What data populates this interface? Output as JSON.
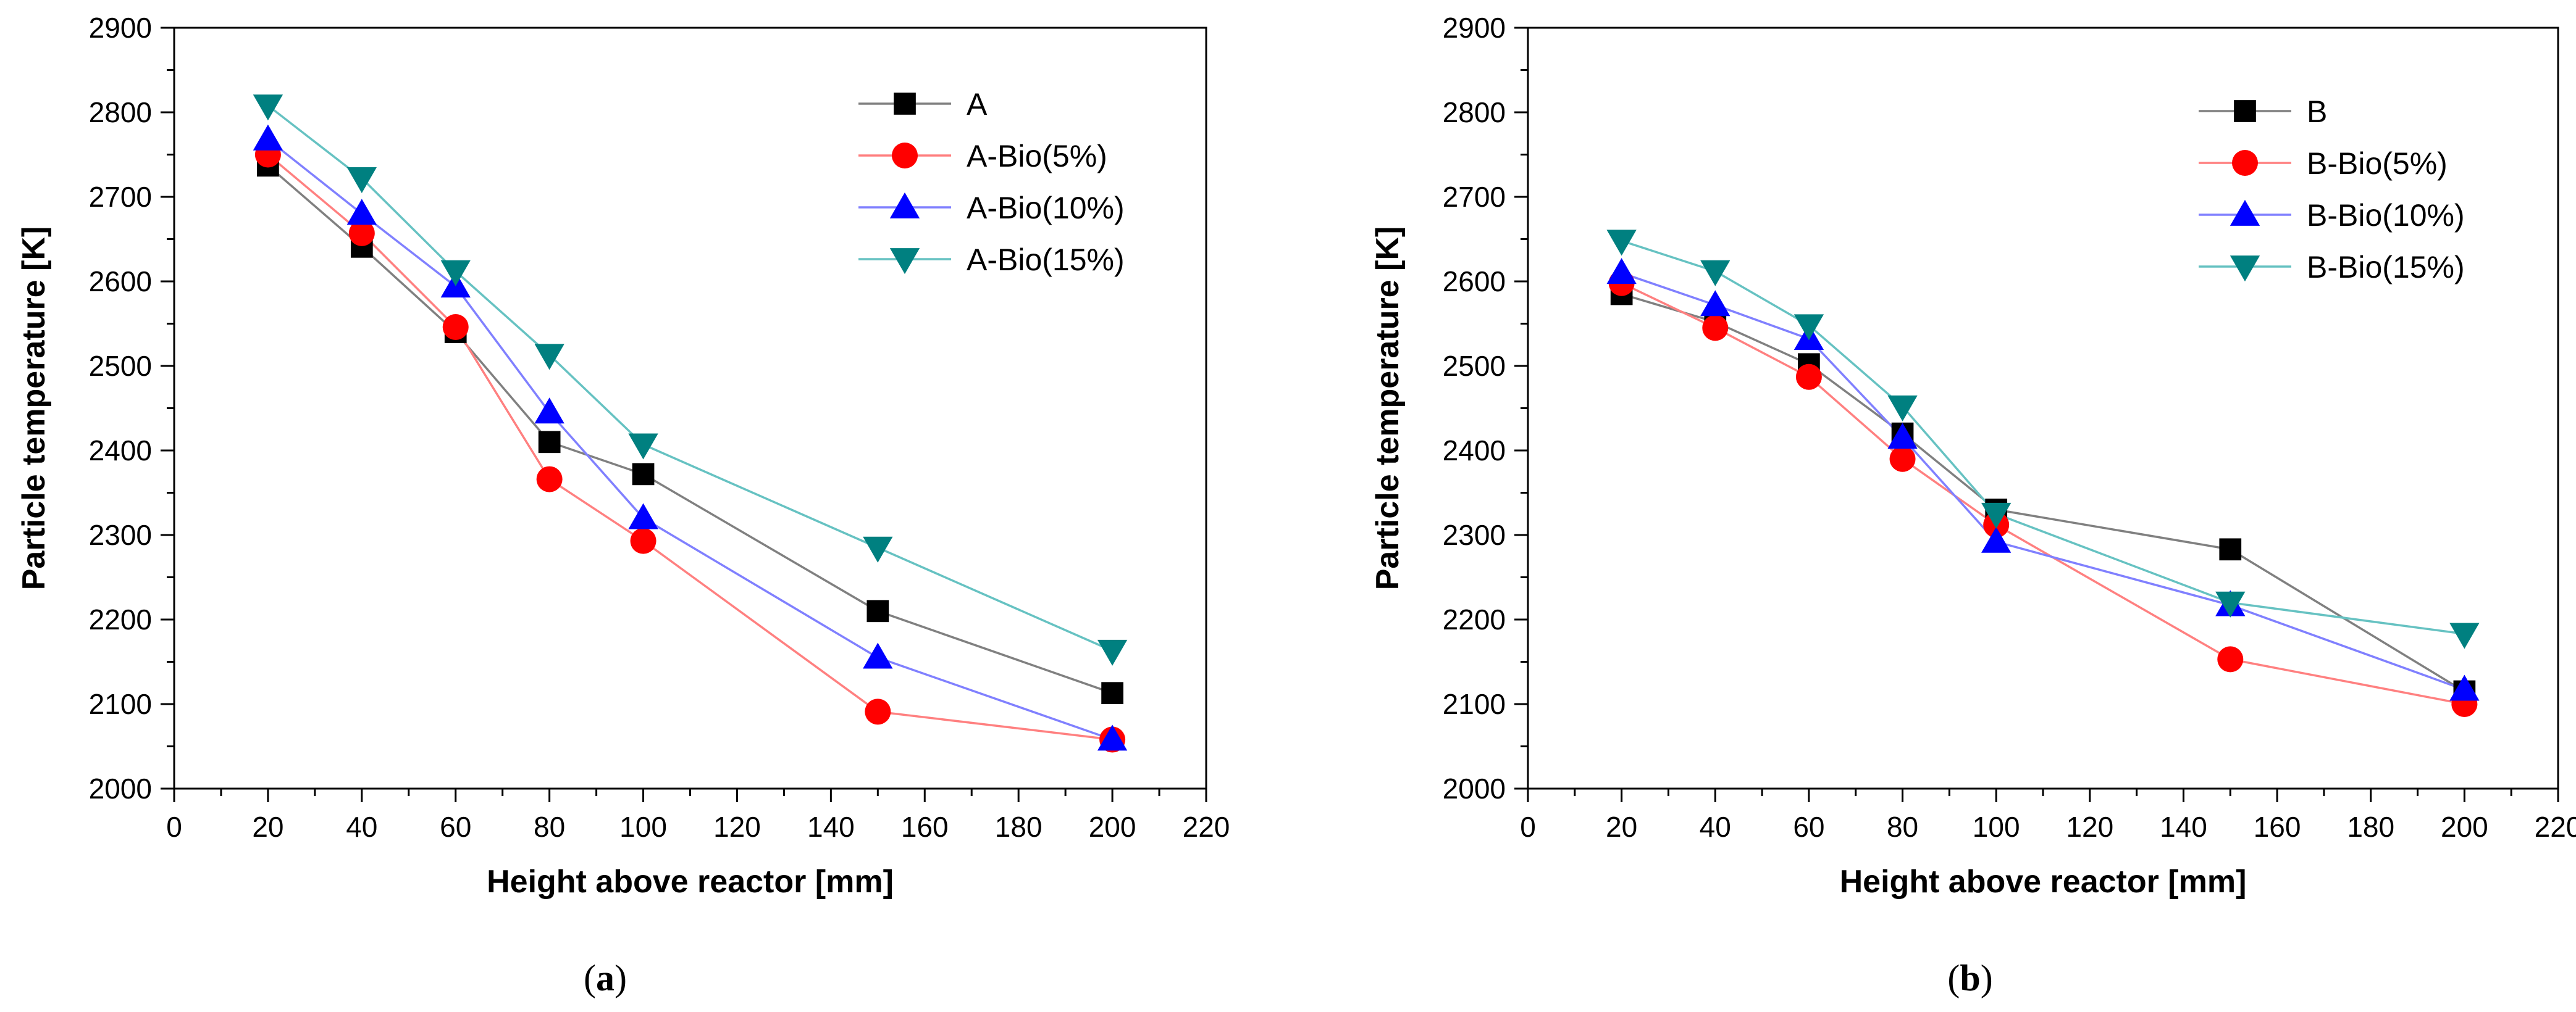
{
  "chart_data": [
    {
      "type": "line",
      "panel_label": "a",
      "xlabel": "Height above reactor [mm]",
      "ylabel": "Particle temperature [K]",
      "xlim": [
        0,
        220
      ],
      "ylim": [
        2000,
        2900
      ],
      "x_ticks": [
        0,
        20,
        40,
        60,
        80,
        100,
        120,
        140,
        160,
        180,
        200,
        220
      ],
      "y_ticks": [
        2000,
        2100,
        2200,
        2300,
        2400,
        2500,
        2600,
        2700,
        2800,
        2900
      ],
      "grid": false,
      "legend_position": "top-right",
      "x": [
        20,
        40,
        60,
        80,
        100,
        150,
        200
      ],
      "series": [
        {
          "name": "A",
          "marker": "square",
          "color": "#000000",
          "line_color": "#808080",
          "values": [
            2737,
            2641,
            2540,
            2410,
            2372,
            2210,
            2113
          ]
        },
        {
          "name": "A-Bio(5%)",
          "marker": "circle",
          "color": "#ff0000",
          "line_color": "#ff8080",
          "values": [
            2750,
            2657,
            2546,
            2366,
            2293,
            2091,
            2058
          ]
        },
        {
          "name": "A-Bio(10%)",
          "marker": "triangle-up",
          "color": "#0000ff",
          "line_color": "#8080ff",
          "values": [
            2768,
            2680,
            2594,
            2445,
            2320,
            2155,
            2058
          ]
        },
        {
          "name": "A-Bio(15%)",
          "marker": "triangle-down",
          "color": "#008080",
          "line_color": "#66c2c2",
          "values": [
            2808,
            2722,
            2612,
            2513,
            2407,
            2285,
            2163
          ]
        }
      ]
    },
    {
      "type": "line",
      "panel_label": "b",
      "xlabel": "Height above reactor [mm]",
      "ylabel": "Particle temperature [K]",
      "xlim": [
        0,
        220
      ],
      "ylim": [
        2000,
        2900
      ],
      "x_ticks": [
        0,
        20,
        40,
        60,
        80,
        100,
        120,
        140,
        160,
        180,
        200,
        220
      ],
      "y_ticks": [
        2000,
        2100,
        2200,
        2300,
        2400,
        2500,
        2600,
        2700,
        2800,
        2900
      ],
      "grid": false,
      "legend_position": "top-right",
      "x": [
        20,
        40,
        60,
        80,
        100,
        150,
        200
      ],
      "series": [
        {
          "name": "B",
          "marker": "square",
          "color": "#000000",
          "line_color": "#808080",
          "values": [
            2585,
            2552,
            2502,
            2420,
            2330,
            2283,
            2115
          ]
        },
        {
          "name": "B-Bio(5%)",
          "marker": "circle",
          "color": "#ff0000",
          "line_color": "#ff8080",
          "values": [
            2598,
            2545,
            2487,
            2390,
            2312,
            2153,
            2100
          ]
        },
        {
          "name": "B-Bio(10%)",
          "marker": "triangle-up",
          "color": "#0000ff",
          "line_color": "#8080ff",
          "values": [
            2610,
            2572,
            2532,
            2415,
            2292,
            2217,
            2117
          ]
        },
        {
          "name": "B-Bio(15%)",
          "marker": "triangle-down",
          "color": "#008080",
          "line_color": "#66c2c2",
          "values": [
            2648,
            2612,
            2548,
            2452,
            2325,
            2220,
            2183
          ]
        }
      ]
    }
  ]
}
